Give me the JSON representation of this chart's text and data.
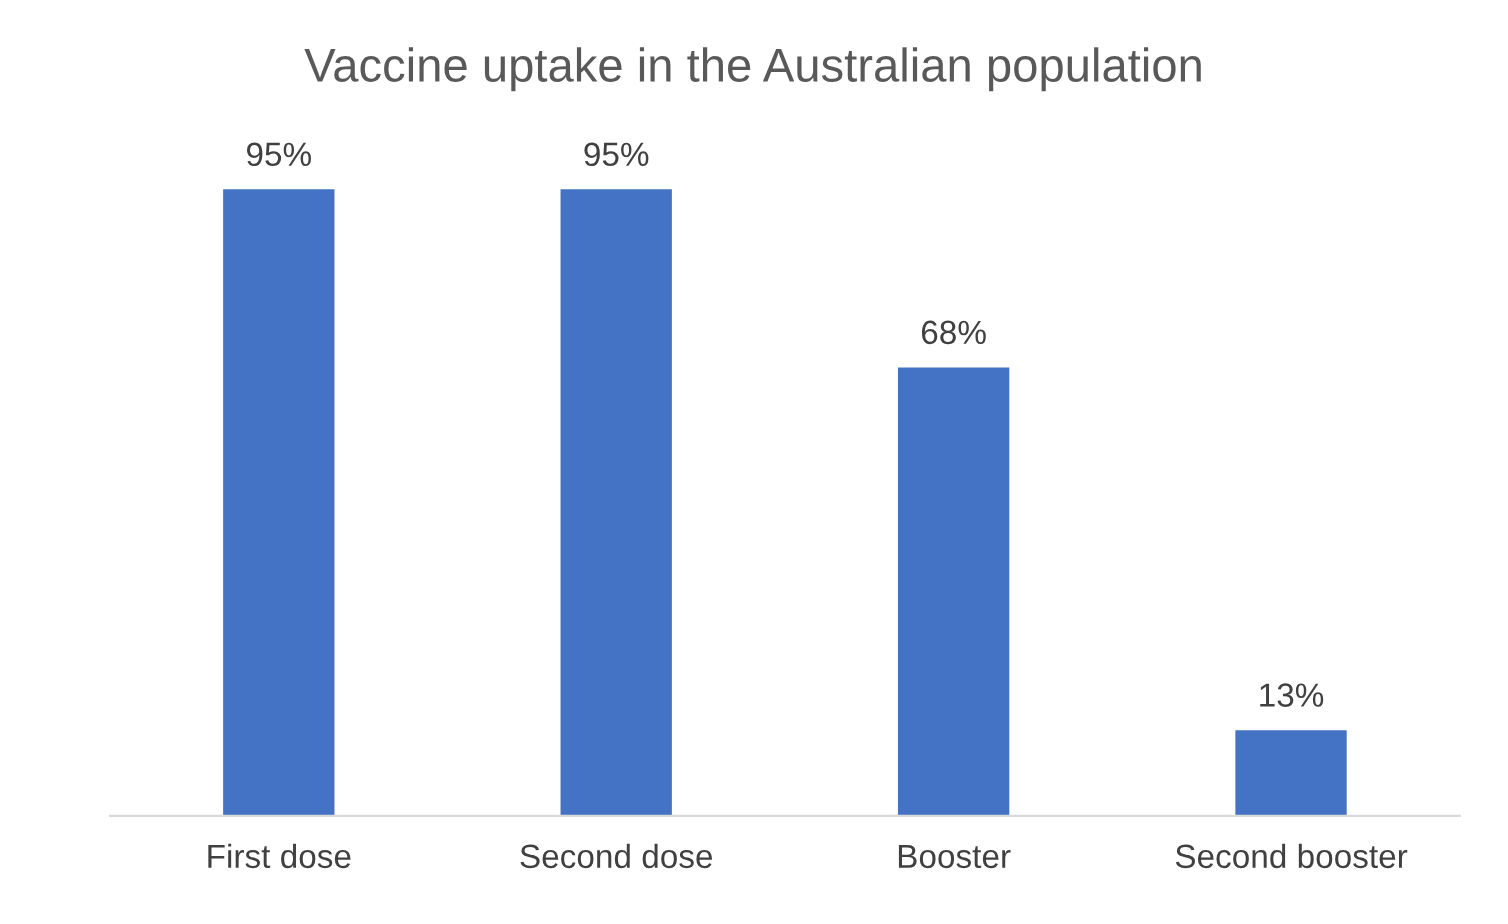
{
  "chart_data": {
    "type": "bar",
    "title": "Vaccine uptake in the Australian population",
    "categories": [
      "First dose",
      "Second dose",
      "Booster",
      "Second booster"
    ],
    "values": [
      95,
      95,
      68,
      13
    ],
    "value_labels": [
      "95%",
      "95%",
      "68%",
      "13%"
    ],
    "color": "#4472c4",
    "grid": false,
    "legend": false
  }
}
